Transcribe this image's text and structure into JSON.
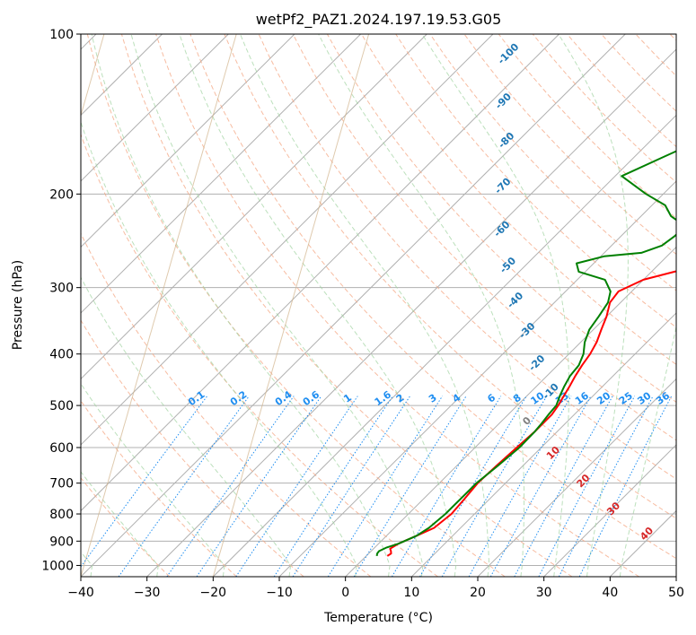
{
  "chart_data": {
    "type": "line",
    "title": "wetPf2_PAZ1.2024.197.19.53.G05",
    "xlabel": "Temperature (°C)",
    "ylabel": "Pressure (hPa)",
    "xlim": [
      -40,
      50
    ],
    "ylim": [
      1050,
      100
    ],
    "y_scale": "log",
    "x_ticks": [
      -40,
      -30,
      -20,
      -10,
      0,
      10,
      20,
      30,
      40,
      50
    ],
    "y_ticks": [
      100,
      200,
      300,
      400,
      500,
      600,
      700,
      800,
      900,
      1000
    ],
    "grid": true,
    "skew": true,
    "series": [
      {
        "color": "#ff0000",
        "x": [
          3.2,
          3.4,
          3.0,
          2.5,
          3.0,
          4.5,
          6.0,
          6.5,
          6.2,
          5.8,
          6.0,
          6.3,
          6.6,
          6.6,
          6.2,
          5.6,
          5.0,
          4.3,
          3.7,
          3.2,
          2.4,
          1.2,
          0.0,
          -1.6,
          -2.0,
          0.0,
          3.5,
          8.0,
          13.2,
          14.2,
          15.8,
          17.2,
          18.2,
          18.8,
          18.3,
          17.6,
          16.2
        ],
        "y": [
          960,
          950,
          940,
          930,
          910,
          880,
          850,
          800,
          750,
          700,
          650,
          600,
          560,
          520,
          500,
          480,
          460,
          440,
          420,
          400,
          380,
          360,
          340,
          320,
          305,
          290,
          280,
          270,
          250,
          230,
          200,
          180,
          160,
          145,
          130,
          115,
          100
        ]
      },
      {
        "color": "#008000",
        "x": [
          1.6,
          1.3,
          1.2,
          1.8,
          3.0,
          4.5,
          5.2,
          5.6,
          5.6,
          5.6,
          6.2,
          6.7,
          6.6,
          6.4,
          6.1,
          5.9,
          5.0,
          4.2,
          3.5,
          3.2,
          2.2,
          0.6,
          -0.6,
          -1.2,
          -1.9,
          -3.2,
          -5.8,
          -11.0,
          -12.6,
          -9.5,
          -4.4,
          -2.4,
          -1.9,
          -1.8,
          -5.5,
          -8.0,
          -12.6,
          -19.0,
          -15.5,
          -10.2,
          -5.5,
          0.5
        ],
        "y": [
          960,
          950,
          940,
          925,
          910,
          880,
          850,
          800,
          750,
          700,
          650,
          600,
          560,
          540,
          520,
          500,
          480,
          460,
          440,
          420,
          400,
          380,
          360,
          340,
          320,
          305,
          290,
          280,
          270,
          262,
          258,
          250,
          240,
          230,
          220,
          210,
          200,
          185,
          170,
          150,
          120,
          100
        ]
      }
    ],
    "dry_adiabat_labels": [
      "-100",
      "-90",
      "-80",
      "-70",
      "-60",
      "-50",
      "-40",
      "-30",
      "-20",
      "-10"
    ],
    "mixing_ratio_labels": [
      "0.1",
      "0.2",
      "0.4",
      "0.6",
      "1",
      "1.6",
      "2",
      "3",
      "4",
      "6",
      "8",
      "10",
      "13",
      "16",
      "20",
      "25",
      "30",
      "36"
    ],
    "moist_adiabat_labels": [
      "0",
      "10",
      "20",
      "30",
      "40"
    ]
  }
}
